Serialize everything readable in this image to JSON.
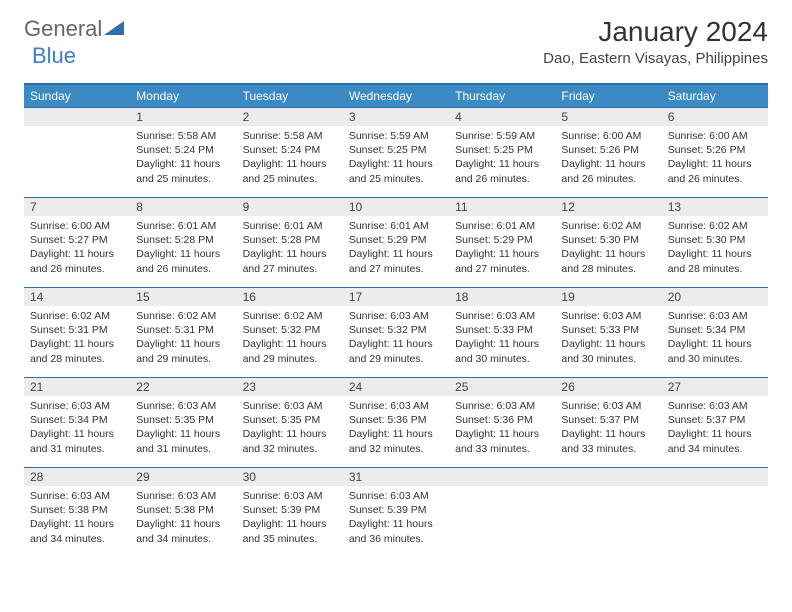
{
  "logo": {
    "text1": "General",
    "text2": "Blue"
  },
  "title": "January 2024",
  "location": "Dao, Eastern Visayas, Philippines",
  "colors": {
    "header_bg": "#3b8ac4",
    "header_text": "#ffffff",
    "rule": "#2f6fa8",
    "daynum_bg": "#ececec",
    "logo_accent": "#3b7fc4"
  },
  "weekdays": [
    "Sunday",
    "Monday",
    "Tuesday",
    "Wednesday",
    "Thursday",
    "Friday",
    "Saturday"
  ],
  "start_offset": 1,
  "days": [
    {
      "n": 1,
      "sr": "5:58 AM",
      "ss": "5:24 PM",
      "dl": "11 hours and 25 minutes."
    },
    {
      "n": 2,
      "sr": "5:58 AM",
      "ss": "5:24 PM",
      "dl": "11 hours and 25 minutes."
    },
    {
      "n": 3,
      "sr": "5:59 AM",
      "ss": "5:25 PM",
      "dl": "11 hours and 25 minutes."
    },
    {
      "n": 4,
      "sr": "5:59 AM",
      "ss": "5:25 PM",
      "dl": "11 hours and 26 minutes."
    },
    {
      "n": 5,
      "sr": "6:00 AM",
      "ss": "5:26 PM",
      "dl": "11 hours and 26 minutes."
    },
    {
      "n": 6,
      "sr": "6:00 AM",
      "ss": "5:26 PM",
      "dl": "11 hours and 26 minutes."
    },
    {
      "n": 7,
      "sr": "6:00 AM",
      "ss": "5:27 PM",
      "dl": "11 hours and 26 minutes."
    },
    {
      "n": 8,
      "sr": "6:01 AM",
      "ss": "5:28 PM",
      "dl": "11 hours and 26 minutes."
    },
    {
      "n": 9,
      "sr": "6:01 AM",
      "ss": "5:28 PM",
      "dl": "11 hours and 27 minutes."
    },
    {
      "n": 10,
      "sr": "6:01 AM",
      "ss": "5:29 PM",
      "dl": "11 hours and 27 minutes."
    },
    {
      "n": 11,
      "sr": "6:01 AM",
      "ss": "5:29 PM",
      "dl": "11 hours and 27 minutes."
    },
    {
      "n": 12,
      "sr": "6:02 AM",
      "ss": "5:30 PM",
      "dl": "11 hours and 28 minutes."
    },
    {
      "n": 13,
      "sr": "6:02 AM",
      "ss": "5:30 PM",
      "dl": "11 hours and 28 minutes."
    },
    {
      "n": 14,
      "sr": "6:02 AM",
      "ss": "5:31 PM",
      "dl": "11 hours and 28 minutes."
    },
    {
      "n": 15,
      "sr": "6:02 AM",
      "ss": "5:31 PM",
      "dl": "11 hours and 29 minutes."
    },
    {
      "n": 16,
      "sr": "6:02 AM",
      "ss": "5:32 PM",
      "dl": "11 hours and 29 minutes."
    },
    {
      "n": 17,
      "sr": "6:03 AM",
      "ss": "5:32 PM",
      "dl": "11 hours and 29 minutes."
    },
    {
      "n": 18,
      "sr": "6:03 AM",
      "ss": "5:33 PM",
      "dl": "11 hours and 30 minutes."
    },
    {
      "n": 19,
      "sr": "6:03 AM",
      "ss": "5:33 PM",
      "dl": "11 hours and 30 minutes."
    },
    {
      "n": 20,
      "sr": "6:03 AM",
      "ss": "5:34 PM",
      "dl": "11 hours and 30 minutes."
    },
    {
      "n": 21,
      "sr": "6:03 AM",
      "ss": "5:34 PM",
      "dl": "11 hours and 31 minutes."
    },
    {
      "n": 22,
      "sr": "6:03 AM",
      "ss": "5:35 PM",
      "dl": "11 hours and 31 minutes."
    },
    {
      "n": 23,
      "sr": "6:03 AM",
      "ss": "5:35 PM",
      "dl": "11 hours and 32 minutes."
    },
    {
      "n": 24,
      "sr": "6:03 AM",
      "ss": "5:36 PM",
      "dl": "11 hours and 32 minutes."
    },
    {
      "n": 25,
      "sr": "6:03 AM",
      "ss": "5:36 PM",
      "dl": "11 hours and 33 minutes."
    },
    {
      "n": 26,
      "sr": "6:03 AM",
      "ss": "5:37 PM",
      "dl": "11 hours and 33 minutes."
    },
    {
      "n": 27,
      "sr": "6:03 AM",
      "ss": "5:37 PM",
      "dl": "11 hours and 34 minutes."
    },
    {
      "n": 28,
      "sr": "6:03 AM",
      "ss": "5:38 PM",
      "dl": "11 hours and 34 minutes."
    },
    {
      "n": 29,
      "sr": "6:03 AM",
      "ss": "5:38 PM",
      "dl": "11 hours and 34 minutes."
    },
    {
      "n": 30,
      "sr": "6:03 AM",
      "ss": "5:39 PM",
      "dl": "11 hours and 35 minutes."
    },
    {
      "n": 31,
      "sr": "6:03 AM",
      "ss": "5:39 PM",
      "dl": "11 hours and 36 minutes."
    }
  ],
  "labels": {
    "sunrise": "Sunrise:",
    "sunset": "Sunset:",
    "daylight": "Daylight:"
  }
}
